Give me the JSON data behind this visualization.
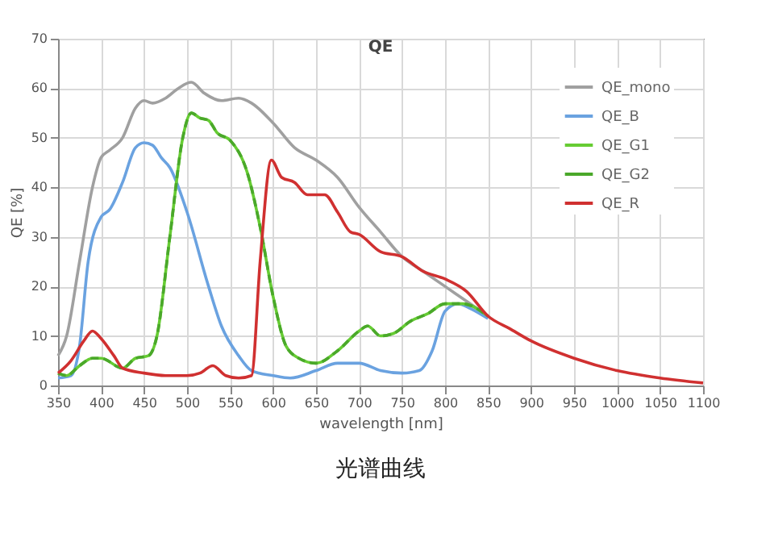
{
  "chart_data": {
    "type": "line",
    "title": "QE",
    "xlabel": "wavelength [nm]",
    "ylabel": "QE [%]",
    "xlim": [
      350,
      1100
    ],
    "xticks": [
      350,
      400,
      450,
      500,
      550,
      600,
      650,
      700,
      750,
      800,
      850,
      900,
      950,
      1000,
      1050,
      1100
    ],
    "ylim": [
      0,
      70
    ],
    "yticks": [
      0,
      10,
      20,
      30,
      40,
      50,
      60,
      70
    ],
    "grid": true,
    "legend": "top right",
    "marker": "none",
    "annotations": [
      "光谱曲线"
    ],
    "series": [
      {
        "name": "QE_mono",
        "color": "#a0a0a0",
        "line_style": "solid",
        "x": [
          350,
          360,
          375,
          390,
          400,
          410,
          425,
          440,
          450,
          460,
          475,
          490,
          505,
          520,
          540,
          560,
          575,
          600,
          625,
          650,
          675,
          700,
          725,
          750,
          775,
          800,
          825,
          850
        ],
        "values": [
          6,
          10,
          25,
          40,
          46,
          47.5,
          50,
          56,
          57.5,
          57,
          58,
          60,
          61.2,
          59,
          57.5,
          58,
          57,
          53,
          48,
          45.5,
          42,
          36,
          31,
          26,
          23,
          20,
          17,
          14
        ]
      },
      {
        "name": "QE_B",
        "color": "#6aa2e0",
        "line_style": "solid",
        "x": [
          350,
          365,
          375,
          385,
          400,
          410,
          425,
          440,
          450,
          460,
          470,
          480,
          500,
          525,
          540,
          560,
          575,
          600,
          620,
          650,
          675,
          700,
          725,
          750,
          770,
          785,
          800,
          815,
          830,
          850
        ],
        "values": [
          1.5,
          2,
          8,
          25,
          34,
          35.5,
          41,
          48,
          49,
          48.5,
          46,
          44,
          35,
          20,
          12,
          6,
          3,
          2,
          1.5,
          3,
          4.5,
          4.5,
          3,
          2.5,
          3,
          7,
          15,
          16.5,
          15.5,
          13.5
        ]
      },
      {
        "name": "QE_G1",
        "color": "#66cc33",
        "line_style": "solid",
        "x": [
          350,
          360,
          375,
          390,
          400,
          425,
          440,
          455,
          465,
          480,
          495,
          505,
          515,
          525,
          535,
          550,
          570,
          585,
          600,
          615,
          630,
          650,
          675,
          700,
          710,
          725,
          740,
          760,
          780,
          800,
          820,
          850
        ],
        "values": [
          2.5,
          2,
          4,
          5.5,
          5.5,
          3.5,
          5.5,
          6,
          10,
          30,
          50,
          55,
          54,
          53.5,
          51,
          49.5,
          43,
          32,
          18,
          8,
          5.5,
          4.5,
          7,
          11,
          12,
          10,
          10.5,
          13,
          14.5,
          16.5,
          16.5,
          14
        ]
      },
      {
        "name": "QE_G2",
        "color": "#4aa82a",
        "line_style": "dashed",
        "x": [
          350,
          360,
          375,
          390,
          400,
          425,
          440,
          455,
          465,
          480,
          495,
          505,
          515,
          525,
          535,
          550,
          570,
          585,
          600,
          615,
          630,
          650,
          675,
          700,
          710,
          725,
          740,
          760,
          780,
          800,
          820,
          850
        ],
        "values": [
          2.5,
          2,
          4,
          5.5,
          5.5,
          3.5,
          5.5,
          6,
          10,
          30,
          50,
          55,
          54,
          53.5,
          51,
          49.5,
          43,
          32,
          18,
          8,
          5.5,
          4.5,
          7,
          11,
          12,
          10,
          10.5,
          13,
          14.5,
          16.5,
          16.5,
          14
        ]
      },
      {
        "name": "QE_R",
        "color": "#d03030",
        "line_style": "solid",
        "x": [
          350,
          365,
          380,
          390,
          400,
          415,
          425,
          450,
          475,
          500,
          515,
          530,
          545,
          560,
          575,
          585,
          598,
          610,
          625,
          640,
          660,
          675,
          690,
          700,
          725,
          750,
          775,
          800,
          825,
          850,
          875,
          900,
          950,
          1000,
          1050,
          1100
        ],
        "values": [
          2.5,
          5,
          9,
          11,
          9.5,
          6,
          3.5,
          2.5,
          2,
          2,
          2.5,
          4,
          2,
          1.5,
          2,
          25,
          45.5,
          42,
          41,
          38.5,
          38.5,
          35,
          31,
          30.5,
          27,
          26,
          23,
          21.5,
          19,
          14,
          11.5,
          9,
          5.5,
          3,
          1.5,
          0.5
        ]
      }
    ]
  }
}
